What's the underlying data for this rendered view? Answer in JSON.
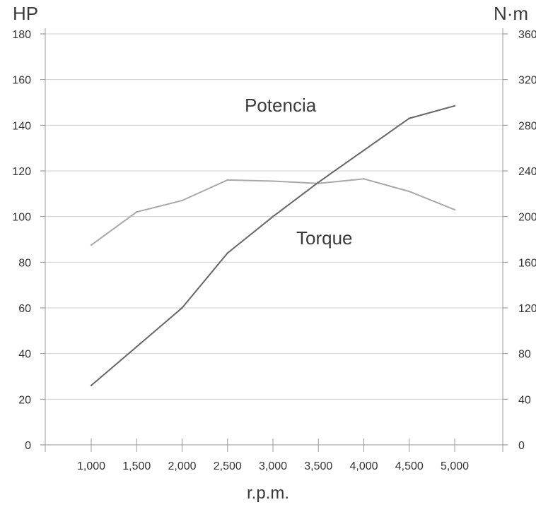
{
  "chart_data": {
    "type": "line",
    "left_axis_unit": "HP",
    "right_axis_unit": "N·m",
    "xlabel": "r.p.m.",
    "x": [
      1000,
      1500,
      2000,
      2500,
      3000,
      3500,
      4000,
      4500,
      5000
    ],
    "x_tick_labels": [
      "1,000",
      "1,500",
      "2,000",
      "2,500",
      "3,000",
      "3,500",
      "4,000",
      "4,500",
      "5,000"
    ],
    "y_left_ticks": [
      0,
      20,
      40,
      60,
      80,
      100,
      120,
      140,
      160,
      180
    ],
    "y_right_ticks": [
      0,
      40,
      80,
      120,
      160,
      200,
      240,
      280,
      320,
      360
    ],
    "ylim_left": [
      0,
      180
    ],
    "ylim_right": [
      0,
      360
    ],
    "grid": "horizontal",
    "series": [
      {
        "name": "Potencia",
        "axis": "left",
        "color": "#666666",
        "values": [
          26,
          43,
          60,
          84,
          100,
          115,
          129,
          143,
          148.5
        ]
      },
      {
        "name": "Torque",
        "axis": "right",
        "color": "#a8a8a8",
        "values": [
          175,
          204,
          214,
          232,
          231,
          229,
          233,
          222,
          206
        ]
      }
    ]
  }
}
